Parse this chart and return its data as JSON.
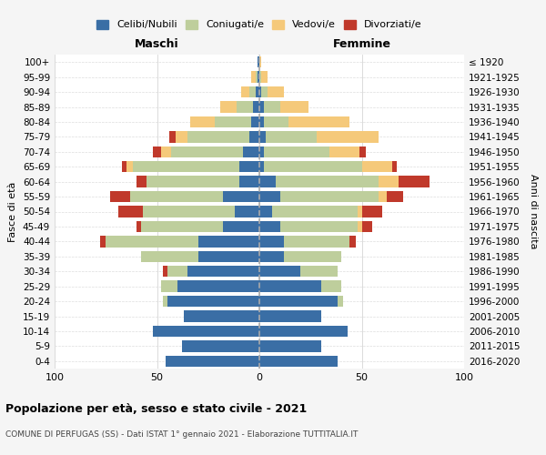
{
  "age_groups": [
    "0-4",
    "5-9",
    "10-14",
    "15-19",
    "20-24",
    "25-29",
    "30-34",
    "35-39",
    "40-44",
    "45-49",
    "50-54",
    "55-59",
    "60-64",
    "65-69",
    "70-74",
    "75-79",
    "80-84",
    "85-89",
    "90-94",
    "95-99",
    "100+"
  ],
  "birth_years": [
    "2016-2020",
    "2011-2015",
    "2006-2010",
    "2001-2005",
    "1996-2000",
    "1991-1995",
    "1986-1990",
    "1981-1985",
    "1976-1980",
    "1971-1975",
    "1966-1970",
    "1961-1965",
    "1956-1960",
    "1951-1955",
    "1946-1950",
    "1941-1945",
    "1936-1940",
    "1931-1935",
    "1926-1930",
    "1921-1925",
    "≤ 1920"
  ],
  "colors": {
    "celibe": "#3A6EA5",
    "coniugato": "#BECE9C",
    "vedovo": "#F5C97A",
    "divorziato": "#C0392B"
  },
  "maschi": {
    "celibe": [
      46,
      38,
      52,
      37,
      45,
      40,
      35,
      30,
      30,
      18,
      12,
      18,
      10,
      10,
      8,
      5,
      4,
      3,
      2,
      1,
      1
    ],
    "coniugato": [
      0,
      0,
      0,
      0,
      2,
      8,
      10,
      28,
      45,
      40,
      45,
      45,
      45,
      52,
      35,
      30,
      18,
      8,
      3,
      1,
      0
    ],
    "vedovo": [
      0,
      0,
      0,
      0,
      0,
      0,
      0,
      0,
      0,
      0,
      0,
      0,
      0,
      3,
      5,
      6,
      12,
      8,
      4,
      2,
      0
    ],
    "divorziato": [
      0,
      0,
      0,
      0,
      0,
      0,
      2,
      0,
      3,
      2,
      12,
      10,
      5,
      2,
      4,
      3,
      0,
      0,
      0,
      0,
      0
    ]
  },
  "femmine": {
    "nubile": [
      38,
      30,
      43,
      30,
      38,
      30,
      20,
      12,
      12,
      10,
      6,
      10,
      8,
      2,
      2,
      3,
      2,
      2,
      1,
      0,
      0
    ],
    "coniugata": [
      0,
      0,
      0,
      0,
      3,
      10,
      18,
      28,
      32,
      38,
      42,
      48,
      50,
      48,
      32,
      25,
      12,
      8,
      3,
      1,
      0
    ],
    "vedova": [
      0,
      0,
      0,
      0,
      0,
      0,
      0,
      0,
      0,
      2,
      2,
      4,
      10,
      15,
      15,
      30,
      30,
      14,
      8,
      3,
      1
    ],
    "divorziata": [
      0,
      0,
      0,
      0,
      0,
      0,
      0,
      0,
      3,
      5,
      10,
      8,
      15,
      2,
      3,
      0,
      0,
      0,
      0,
      0,
      0
    ]
  },
  "xlim": 100,
  "title_main": "Popolazione per età, sesso e stato civile - 2021",
  "title_sub": "COMUNE DI PERFUGAS (SS) - Dati ISTAT 1° gennaio 2021 - Elaborazione TUTTITALIA.IT",
  "ylabel_left": "Fasce di età",
  "ylabel_right": "Anni di nascita",
  "xlabel_maschi": "Maschi",
  "xlabel_femmine": "Femmine",
  "legend_labels": [
    "Celibi/Nubili",
    "Coniugati/e",
    "Vedovi/e",
    "Divorziati/e"
  ],
  "bg_color": "#f5f5f5",
  "plot_bg": "#ffffff"
}
